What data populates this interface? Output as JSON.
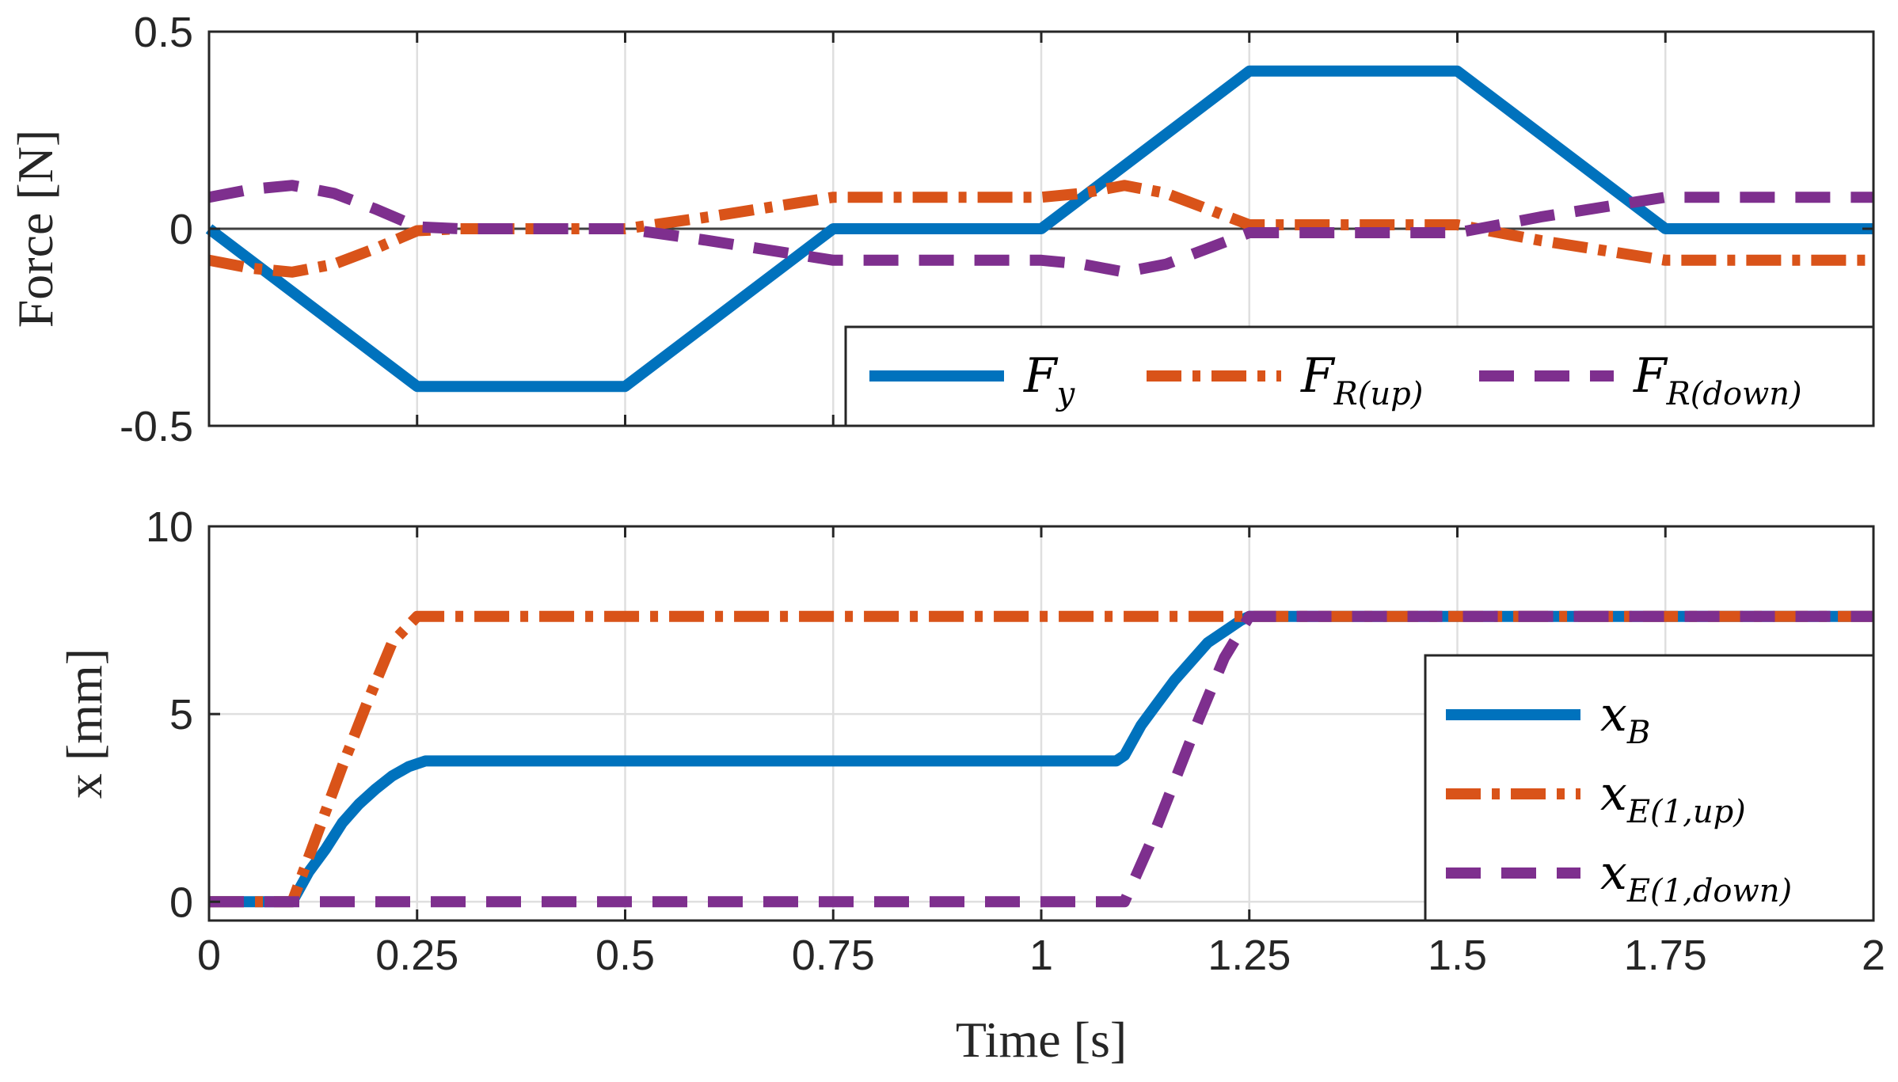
{
  "chart_data": [
    {
      "type": "line",
      "ylabel": "Force [N]",
      "xlabel": "",
      "xlim": [
        0,
        2
      ],
      "ylim": [
        -0.5,
        0.5
      ],
      "xticks": [
        "0",
        "0.25",
        "0.5",
        "0.75",
        "1",
        "1.25",
        "1.5",
        "1.75",
        "2"
      ],
      "yticks": [
        "0.5",
        "0",
        "-0.5"
      ],
      "ytick_values": [
        0.5,
        0,
        -0.5
      ],
      "grid": true,
      "zero_line": true,
      "legend_position": "bottom-right, horizontal",
      "series": [
        {
          "name": "F_y",
          "legend_main": "F",
          "legend_sub": "y",
          "color": "#0072BD",
          "style": "solid",
          "x": [
            0,
            0.25,
            0.5,
            0.75,
            1.0,
            1.25,
            1.5,
            1.75,
            2.0
          ],
          "y": [
            0,
            -0.4,
            -0.4,
            0,
            0,
            0.4,
            0.4,
            0,
            0
          ]
        },
        {
          "name": "F_R(up)",
          "legend_main": "F",
          "legend_sub": "R(up)",
          "color": "#D95319",
          "style": "dashdot",
          "x": [
            0,
            0.05,
            0.1,
            0.15,
            0.2,
            0.25,
            0.3,
            0.5,
            0.6,
            0.75,
            1.0,
            1.05,
            1.1,
            1.15,
            1.2,
            1.25,
            1.5,
            1.6,
            1.75,
            2.0
          ],
          "y": [
            -0.08,
            -0.1,
            -0.11,
            -0.09,
            -0.05,
            -0.005,
            0,
            0,
            0.03,
            0.08,
            0.08,
            0.09,
            0.11,
            0.09,
            0.05,
            0.01,
            0.01,
            -0.03,
            -0.08,
            -0.08
          ]
        },
        {
          "name": "F_R(down)",
          "legend_main": "F",
          "legend_sub": "R(down)",
          "color": "#7E2F8E",
          "style": "dashed",
          "x": [
            0,
            0.05,
            0.1,
            0.15,
            0.2,
            0.25,
            0.3,
            0.5,
            0.6,
            0.75,
            1.0,
            1.05,
            1.1,
            1.15,
            1.2,
            1.25,
            1.5,
            1.6,
            1.75,
            2.0
          ],
          "y": [
            0.08,
            0.1,
            0.11,
            0.09,
            0.05,
            0.005,
            0,
            0,
            -0.03,
            -0.08,
            -0.08,
            -0.09,
            -0.11,
            -0.09,
            -0.05,
            -0.01,
            -0.01,
            0.03,
            0.08,
            0.08
          ]
        }
      ]
    },
    {
      "type": "line",
      "ylabel": "x [mm]",
      "xlabel": "Time [s]",
      "xlim": [
        0,
        2
      ],
      "ylim": [
        -0.5,
        10
      ],
      "xticks": [
        "0",
        "0.25",
        "0.5",
        "0.75",
        "1",
        "1.25",
        "1.5",
        "1.75",
        "2"
      ],
      "yticks": [
        "10",
        "5",
        "0"
      ],
      "ytick_values": [
        10,
        5,
        0
      ],
      "grid": true,
      "legend_position": "middle-right, vertical",
      "series": [
        {
          "name": "x_B",
          "legend_main": "x",
          "legend_sub": "B",
          "color": "#0072BD",
          "style": "solid",
          "x": [
            0,
            0.1,
            0.12,
            0.14,
            0.16,
            0.18,
            0.2,
            0.22,
            0.24,
            0.26,
            1.09,
            1.1,
            1.12,
            1.14,
            1.16,
            1.18,
            1.2,
            1.22,
            1.24,
            1.25,
            2.0
          ],
          "y": [
            0,
            0,
            0.8,
            1.4,
            2.1,
            2.6,
            3.0,
            3.35,
            3.6,
            3.75,
            3.75,
            3.9,
            4.7,
            5.3,
            5.9,
            6.4,
            6.9,
            7.2,
            7.5,
            7.6,
            7.6
          ]
        },
        {
          "name": "x_E(1,up)",
          "legend_main": "x",
          "legend_sub": "E(1,up)",
          "color": "#D95319",
          "style": "dashdot",
          "x": [
            0,
            0.1,
            0.13,
            0.16,
            0.19,
            0.22,
            0.25,
            2.0
          ],
          "y": [
            0,
            0,
            1.8,
            3.6,
            5.3,
            6.9,
            7.6,
            7.6
          ]
        },
        {
          "name": "x_E(1,down)",
          "legend_main": "x",
          "legend_sub": "E(1,down)",
          "color": "#7E2F8E",
          "style": "dashed",
          "x": [
            0,
            1.1,
            1.13,
            1.16,
            1.19,
            1.22,
            1.25,
            2.0
          ],
          "y": [
            0,
            0,
            1.5,
            3.2,
            4.9,
            6.5,
            7.6,
            7.6
          ]
        }
      ]
    }
  ]
}
